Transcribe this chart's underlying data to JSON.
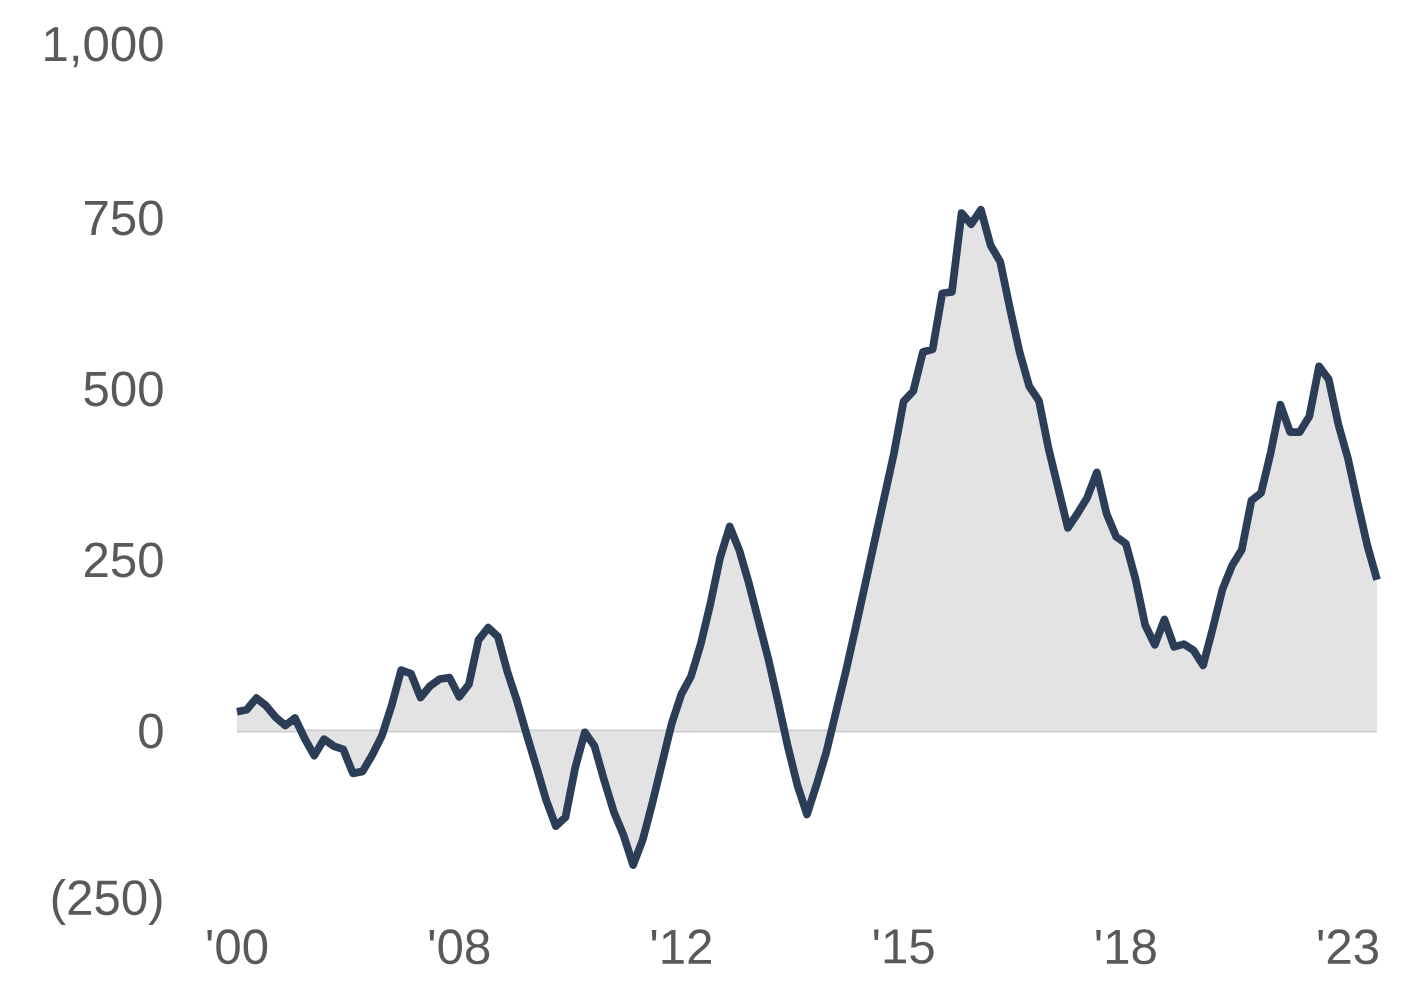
{
  "chart_data": {
    "type": "area",
    "ylim": [
      -250,
      1000
    ],
    "categories": [
      "'00",
      null,
      null,
      null,
      null,
      null,
      null,
      null,
      null,
      null,
      null,
      null,
      null,
      null,
      null,
      null,
      null,
      null,
      null,
      null,
      null,
      null,
      null,
      "'08",
      null,
      null,
      null,
      null,
      null,
      null,
      null,
      null,
      null,
      null,
      null,
      null,
      null,
      null,
      null,
      null,
      null,
      null,
      null,
      null,
      null,
      null,
      "'12",
      null,
      null,
      null,
      null,
      null,
      null,
      null,
      null,
      null,
      null,
      null,
      null,
      null,
      null,
      null,
      null,
      null,
      null,
      null,
      null,
      null,
      null,
      "'15",
      null,
      null,
      null,
      null,
      null,
      null,
      null,
      null,
      null,
      null,
      null,
      null,
      null,
      null,
      null,
      null,
      null,
      null,
      null,
      null,
      null,
      null,
      "'18",
      null,
      null,
      null,
      null,
      null,
      null,
      null,
      null,
      null,
      null,
      null,
      null,
      null,
      null,
      null,
      null,
      null,
      null,
      null,
      null,
      null,
      null,
      "'23",
      null,
      null,
      null
    ],
    "yticks": [
      {
        "value": -250,
        "label": "(250)"
      },
      0,
      250,
      500,
      750,
      {
        "value": 1000,
        "label": "1,000"
      }
    ],
    "ref_lines": [
      {
        "axis": "y",
        "value": 0,
        "color": "#cccccc"
      }
    ],
    "series": [
      {
        "color": "#2b3d57",
        "values": [
          28,
          31,
          48,
          37,
          20,
          8,
          19,
          -11,
          -36,
          -12,
          -22,
          -27,
          -62,
          -59,
          -35,
          -7,
          37,
          89,
          84,
          49,
          66,
          76,
          78,
          50,
          68,
          133,
          151,
          138,
          86,
          43,
          -6,
          -53,
          -101,
          -139,
          -126,
          -54,
          -2,
          -22,
          -72,
          -118,
          -152,
          -196,
          -159,
          -105,
          -47,
          11,
          54,
          80,
          127,
          186,
          253,
          299,
          264,
          215,
          160,
          105,
          43,
          -22,
          -79,
          -122,
          -78,
          -31,
          28,
          86,
          149,
          213,
          278,
          342,
          406,
          482,
          497,
          554,
          558,
          640,
          642,
          757,
          741,
          762,
          710,
          686,
          618,
          554,
          504,
          483,
          413,
          355,
          297,
          318,
          341,
          378,
          318,
          284,
          274,
          222,
          155,
          126,
          163,
          123,
          127,
          118,
          96,
          150,
          207,
          242,
          265,
          337,
          348,
          407,
          477,
          437,
          437,
          460,
          533,
          514,
          448,
          398,
          333,
          271,
          221
        ]
      }
    ]
  }
}
